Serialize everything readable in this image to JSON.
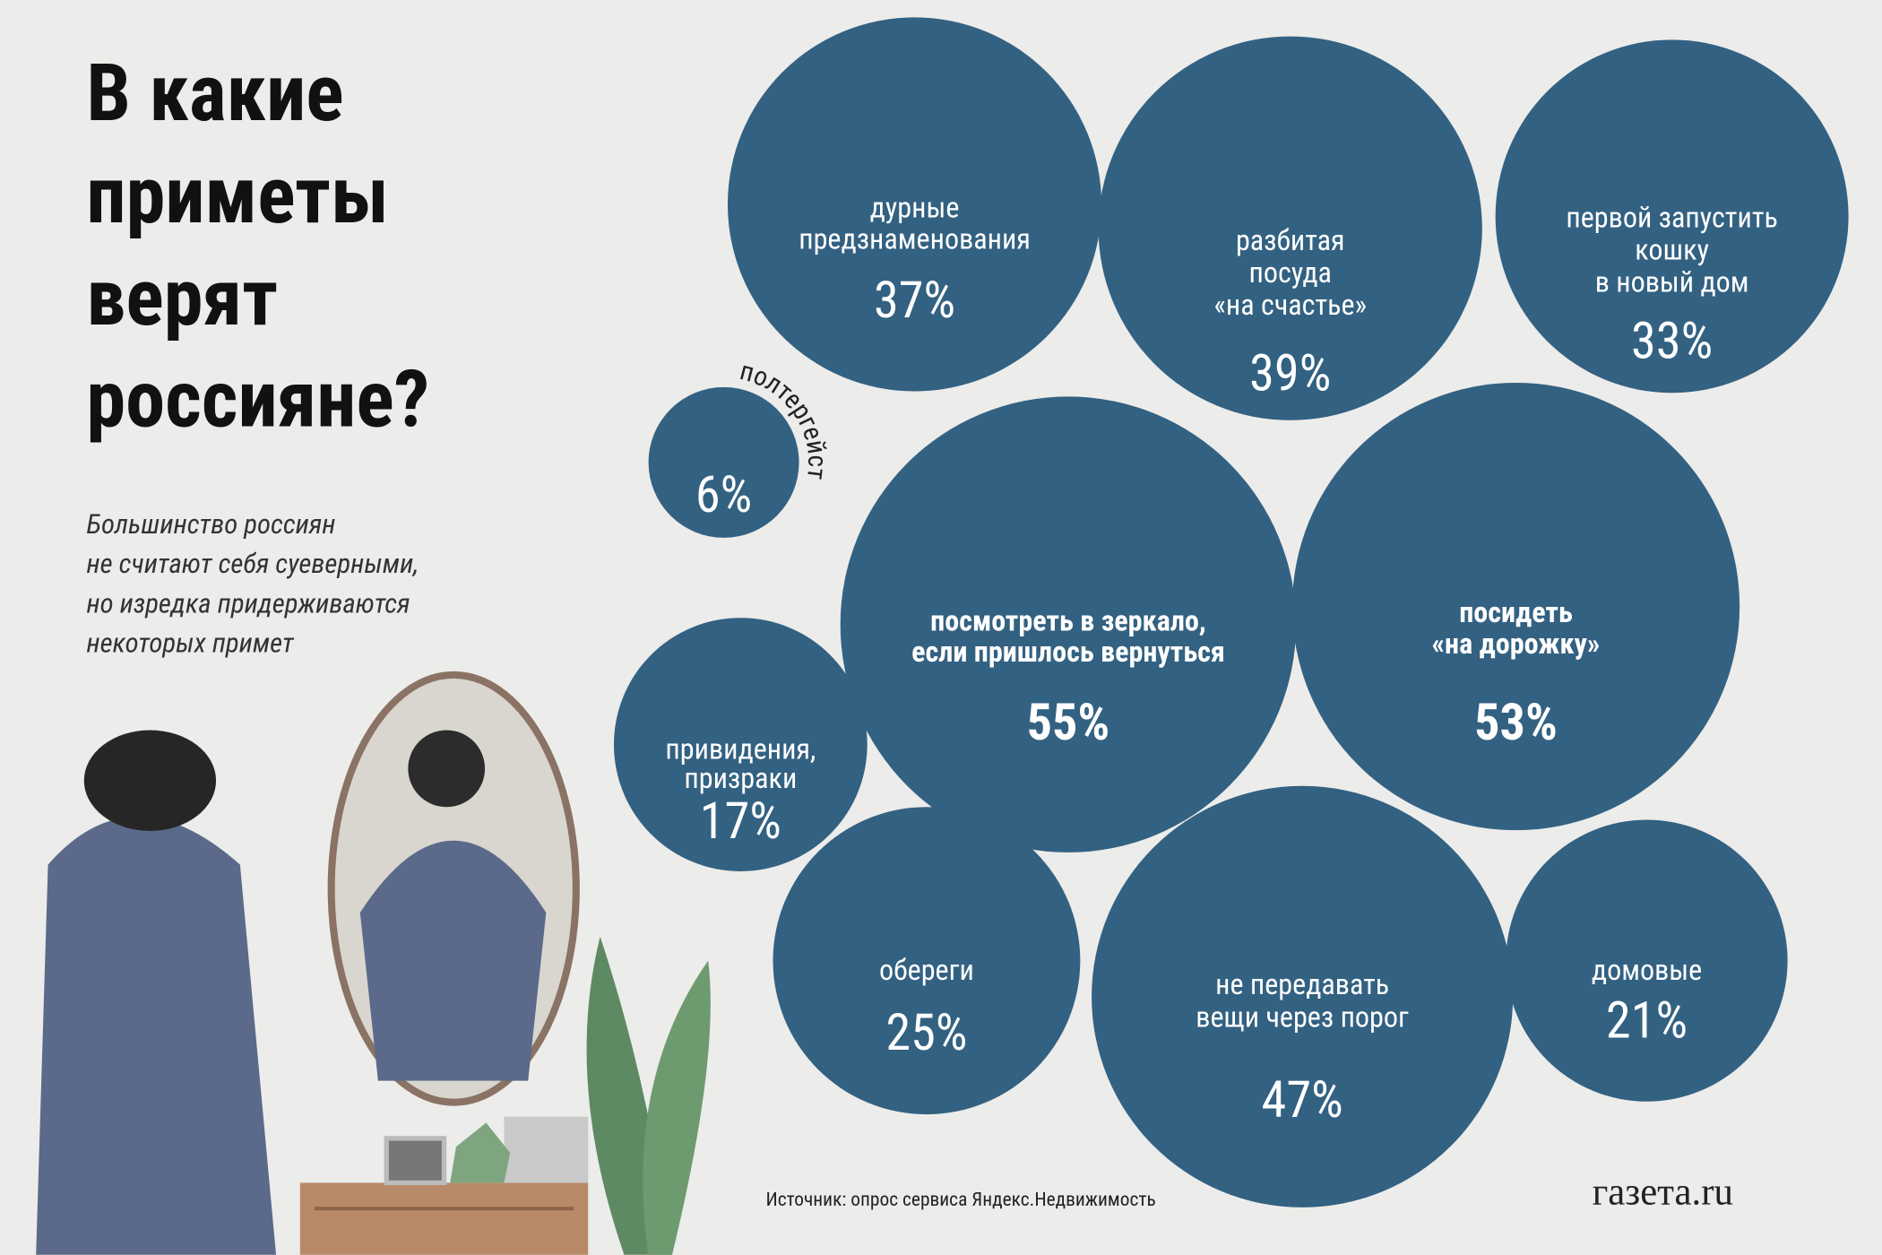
{
  "chart_data": {
    "type": "bubble",
    "title": [
      "В какие",
      "приметы",
      "верят",
      "россияне?"
    ],
    "subtitle": [
      "Большинство россиян",
      "не считают себя суеверными,",
      "но изредка придерживаются",
      "некоторых примет"
    ],
    "color": "#336182",
    "categories": [
      [
        "дурные",
        "предзнаменования"
      ],
      [
        "разбитая",
        "посуда",
        "«на счастье»"
      ],
      [
        "первой запустить",
        "кошку",
        "в новый дом"
      ],
      [
        "полтергейст"
      ],
      [
        "посмотреть в зеркало,",
        "если пришлось вернуться"
      ],
      [
        "посидеть",
        "«на дорожку»"
      ],
      [
        "привидения,",
        "призраки"
      ],
      [
        "обереги"
      ],
      [
        "не передавать",
        "вещи через порог"
      ],
      [
        "домовые"
      ]
    ],
    "values": [
      37,
      39,
      33,
      6,
      55,
      53,
      17,
      25,
      47,
      21
    ],
    "value_labels": [
      "37%",
      "39%",
      "33%",
      "6%",
      "55%",
      "53%",
      "17%",
      "25%",
      "47%",
      "21%"
    ],
    "source": "Источник: опрос сервиса Яндекс.Недвижимость",
    "logo": "газета.ru"
  }
}
